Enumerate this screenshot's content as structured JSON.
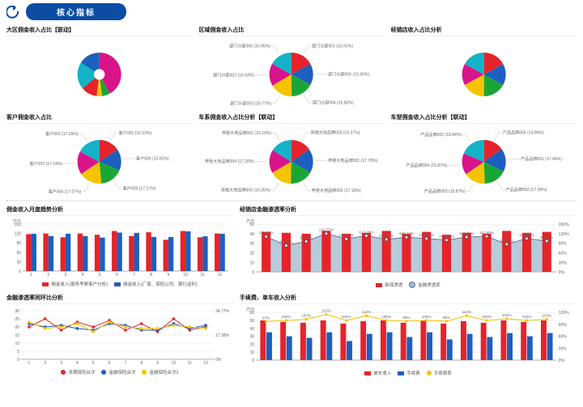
{
  "palette": {
    "bg": "#ffffff",
    "header_blue": "#0b4da2",
    "red": "#e6232a",
    "blue": "#1d5fbf",
    "green": "#1aa636",
    "yellow": "#f4c400",
    "magenta": "#d9138a",
    "cyan": "#12b3c7",
    "grid": "#e5e5e5",
    "axis": "#666666",
    "area_fill": "#9fb9cf",
    "orange": "#e88b1a"
  },
  "header": {
    "back_icon": "back-arrow",
    "title": "核心指标"
  },
  "pies": [
    {
      "title": "大区佣金收入占比【联动】",
      "type": "donut",
      "inner_pct": 0.25,
      "slices": [
        {
          "label": "",
          "value": 42,
          "color": "#d9138a"
        },
        {
          "label": "",
          "value": 6,
          "color": "#1aa636"
        },
        {
          "label": "",
          "value": 4,
          "color": "#f4c400"
        },
        {
          "label": "",
          "value": 12,
          "color": "#e6232a"
        },
        {
          "label": "",
          "value": 20,
          "color": "#12b3c7"
        },
        {
          "label": "",
          "value": 16,
          "color": "#1d5fbf"
        }
      ]
    },
    {
      "title": "区域佣金收入占比",
      "type": "pie",
      "slices": [
        {
          "label": "部门分部001 (16.91%)",
          "value": 16.91,
          "color": "#e6232a"
        },
        {
          "label": "部门分部005 (15.90%)",
          "value": 15.9,
          "color": "#1d5fbf"
        },
        {
          "label": "部门分部004 (16.83%)",
          "value": 16.83,
          "color": "#1aa636"
        },
        {
          "label": "部门分部003 (16.77%)",
          "value": 16.77,
          "color": "#f4c400"
        },
        {
          "label": "部门分部002 (16.63%)",
          "value": 16.63,
          "color": "#d9138a"
        },
        {
          "label": "部门分部006 (16.95%)",
          "value": 16.95,
          "color": "#12b3c7"
        }
      ]
    },
    {
      "title": "经销店收入占比分析",
      "type": "pie",
      "slices": [
        {
          "label": "",
          "value": 17,
          "color": "#e6232a"
        },
        {
          "label": "",
          "value": 16,
          "color": "#1d5fbf"
        },
        {
          "label": "",
          "value": 17,
          "color": "#1aa636"
        },
        {
          "label": "",
          "value": 17,
          "color": "#f4c400"
        },
        {
          "label": "",
          "value": 16,
          "color": "#d9138a"
        },
        {
          "label": "",
          "value": 17,
          "color": "#12b3c7"
        }
      ]
    },
    {
      "title": "客户佣金收入占比",
      "type": "pie",
      "slices": [
        {
          "label": "客户001 (15.52%)",
          "value": 15.52,
          "color": "#e6232a"
        },
        {
          "label": "客户006 (15.81%)",
          "value": 15.81,
          "color": "#1d5fbf"
        },
        {
          "label": "客户005 (17.17%)",
          "value": 17.17,
          "color": "#1aa636"
        },
        {
          "label": "客户004 (17.07%)",
          "value": 17.07,
          "color": "#f4c400"
        },
        {
          "label": "客户003 (17.14%)",
          "value": 17.14,
          "color": "#d9138a"
        },
        {
          "label": "客户002 (17.29%)",
          "value": 17.29,
          "color": "#12b3c7"
        }
      ]
    },
    {
      "title": "车系佣金收入占比分析【联动】",
      "type": "pie",
      "slices": [
        {
          "label": "奔驰大地品牌003 (15.37%)",
          "value": 15.37,
          "color": "#e6232a"
        },
        {
          "label": "奔驰大地品牌001 (17.78%)",
          "value": 17.78,
          "color": "#1d5fbf"
        },
        {
          "label": "奔驰大地品牌005 (17.15%)",
          "value": 17.15,
          "color": "#1aa636"
        },
        {
          "label": "奔驰大地品牌006 (16.35%)",
          "value": 16.35,
          "color": "#f4c400"
        },
        {
          "label": "奔驰大地品牌004 (17.20%)",
          "value": 17.2,
          "color": "#d9138a"
        },
        {
          "label": "奔驰大地品牌002 (16.10%)",
          "value": 16.1,
          "color": "#12b3c7"
        }
      ]
    },
    {
      "title": "车型佣金收入占比分析【联动】",
      "type": "pie",
      "slices": [
        {
          "label": "产品品牌006 (14.89%)",
          "value": 14.89,
          "color": "#e6232a"
        },
        {
          "label": "产品品牌001 (17.44%)",
          "value": 17.44,
          "color": "#1d5fbf"
        },
        {
          "label": "产品品牌002 (17.09%)",
          "value": 17.09,
          "color": "#1aa636"
        },
        {
          "label": "产品品牌003 (15.87%)",
          "value": 15.87,
          "color": "#f4c400"
        },
        {
          "label": "产品品牌004 (15.87%)",
          "value": 15.87,
          "color": "#d9138a"
        },
        {
          "label": "产品品牌005 (18.84%)",
          "value": 18.84,
          "color": "#12b3c7"
        }
      ]
    }
  ],
  "bar1": {
    "title": "佣金收入月度趋势分析",
    "categories": [
      "1",
      "2",
      "3",
      "4",
      "5",
      "6",
      "7",
      "8",
      "9",
      "10",
      "11",
      "12"
    ],
    "yticks": [
      0,
      30,
      60,
      90,
      120,
      150
    ],
    "ylim": [
      0,
      150
    ],
    "unit": "万元",
    "series": [
      {
        "name": "佣金收入(服务考察客户分析)",
        "color": "#e6232a",
        "values": [
          118,
          120,
          108,
          120,
          116,
          128,
          112,
          124,
          100,
          128,
          108,
          120
        ]
      },
      {
        "name": "佣金收入(厂家、保险公司、银行返利)",
        "color": "#1d5fbf",
        "values": [
          119,
          112,
          119,
          112,
          107,
          123,
          122,
          109,
          109,
          127,
          111,
          119
        ]
      }
    ]
  },
  "combo1": {
    "title": "经销店金融渗透率分析",
    "categories_n": 15,
    "yLeft": {
      "ticks": [
        0,
        10,
        20,
        30,
        40,
        50
      ],
      "lim": [
        0,
        50
      ],
      "unit": "万元"
    },
    "yRight": {
      "ticks": [
        0,
        30,
        60,
        90,
        120,
        150
      ],
      "lim": [
        0,
        150
      ],
      "unit": "%"
    },
    "bars": {
      "name": "新保渗透",
      "color": "#e6232a",
      "values": [
        42,
        41,
        40,
        43,
        40,
        41,
        43,
        40,
        42,
        39,
        41,
        40,
        43,
        41,
        42
      ]
    },
    "area": {
      "name": "金融渗透率",
      "color_fill": "#9fb9cf",
      "color_line": "#5b7ea0",
      "marker_border": "#2a537a",
      "values_pct": [
        111.41,
        83.04,
        95.85,
        120.75,
        103.77,
        113.79,
        102.34,
        109.1,
        105.0,
        100.0,
        110.0,
        111.89,
        87.03,
        105.0,
        97.3
      ]
    }
  },
  "line1": {
    "title": "金融渗透率同环比分析",
    "categories": [
      "1",
      "2",
      "3",
      "4",
      "5",
      "6",
      "7",
      "8",
      "9",
      "10",
      "11",
      "12"
    ],
    "yticks": [
      0,
      5,
      10,
      15,
      20,
      25,
      30
    ],
    "ylim": [
      0,
      30
    ],
    "series": [
      {
        "name": "本期保险台次",
        "color": "#e6232a",
        "marker": "circle",
        "values": [
          20,
          25,
          18,
          23,
          20,
          24,
          18,
          22,
          17,
          25,
          18,
          20
        ]
      },
      {
        "name": "金融保险台次",
        "color": "#1d5fbf",
        "marker": "square",
        "values": [
          22,
          20,
          21,
          19,
          18,
          22,
          21,
          18,
          18,
          22,
          19,
          21
        ]
      },
      {
        "name": "金融保险台次2",
        "color": "#f4c400",
        "marker": "circle",
        "values": [
          23,
          19,
          20,
          22,
          17,
          23,
          20,
          19,
          19,
          21,
          20,
          19
        ]
      }
    ],
    "right_labels": [
      "34.77%",
      "17.38%",
      "0%"
    ]
  },
  "combo2": {
    "title": "手续费、单车收入分析",
    "categories_n": 15,
    "yLeft": {
      "ticks": [
        0,
        10,
        20,
        30,
        40,
        50,
        60
      ],
      "lim": [
        0,
        60
      ],
      "unit": "万元"
    },
    "yRight": {
      "ticks": [
        0,
        30,
        60,
        90,
        120
      ],
      "lim": [
        0,
        120
      ],
      "unit": "%"
    },
    "bars1": {
      "name": "单车收入",
      "color": "#e6232a",
      "values": [
        50,
        48,
        47,
        50,
        46,
        49,
        50,
        47,
        50,
        46,
        49,
        47,
        50,
        48,
        50
      ]
    },
    "bars2": {
      "name": "手续费",
      "color": "#1d5fbf",
      "values": [
        35,
        30,
        28,
        35,
        24,
        33,
        35,
        29,
        35,
        26,
        33,
        29,
        34,
        30,
        34
      ]
    },
    "line": {
      "name": "手续费率",
      "color": "#f4c400",
      "values_pct": [
        97,
        100,
        103,
        115,
        100,
        112,
        100,
        98,
        100,
        98,
        112,
        100,
        104,
        100,
        103
      ]
    }
  }
}
